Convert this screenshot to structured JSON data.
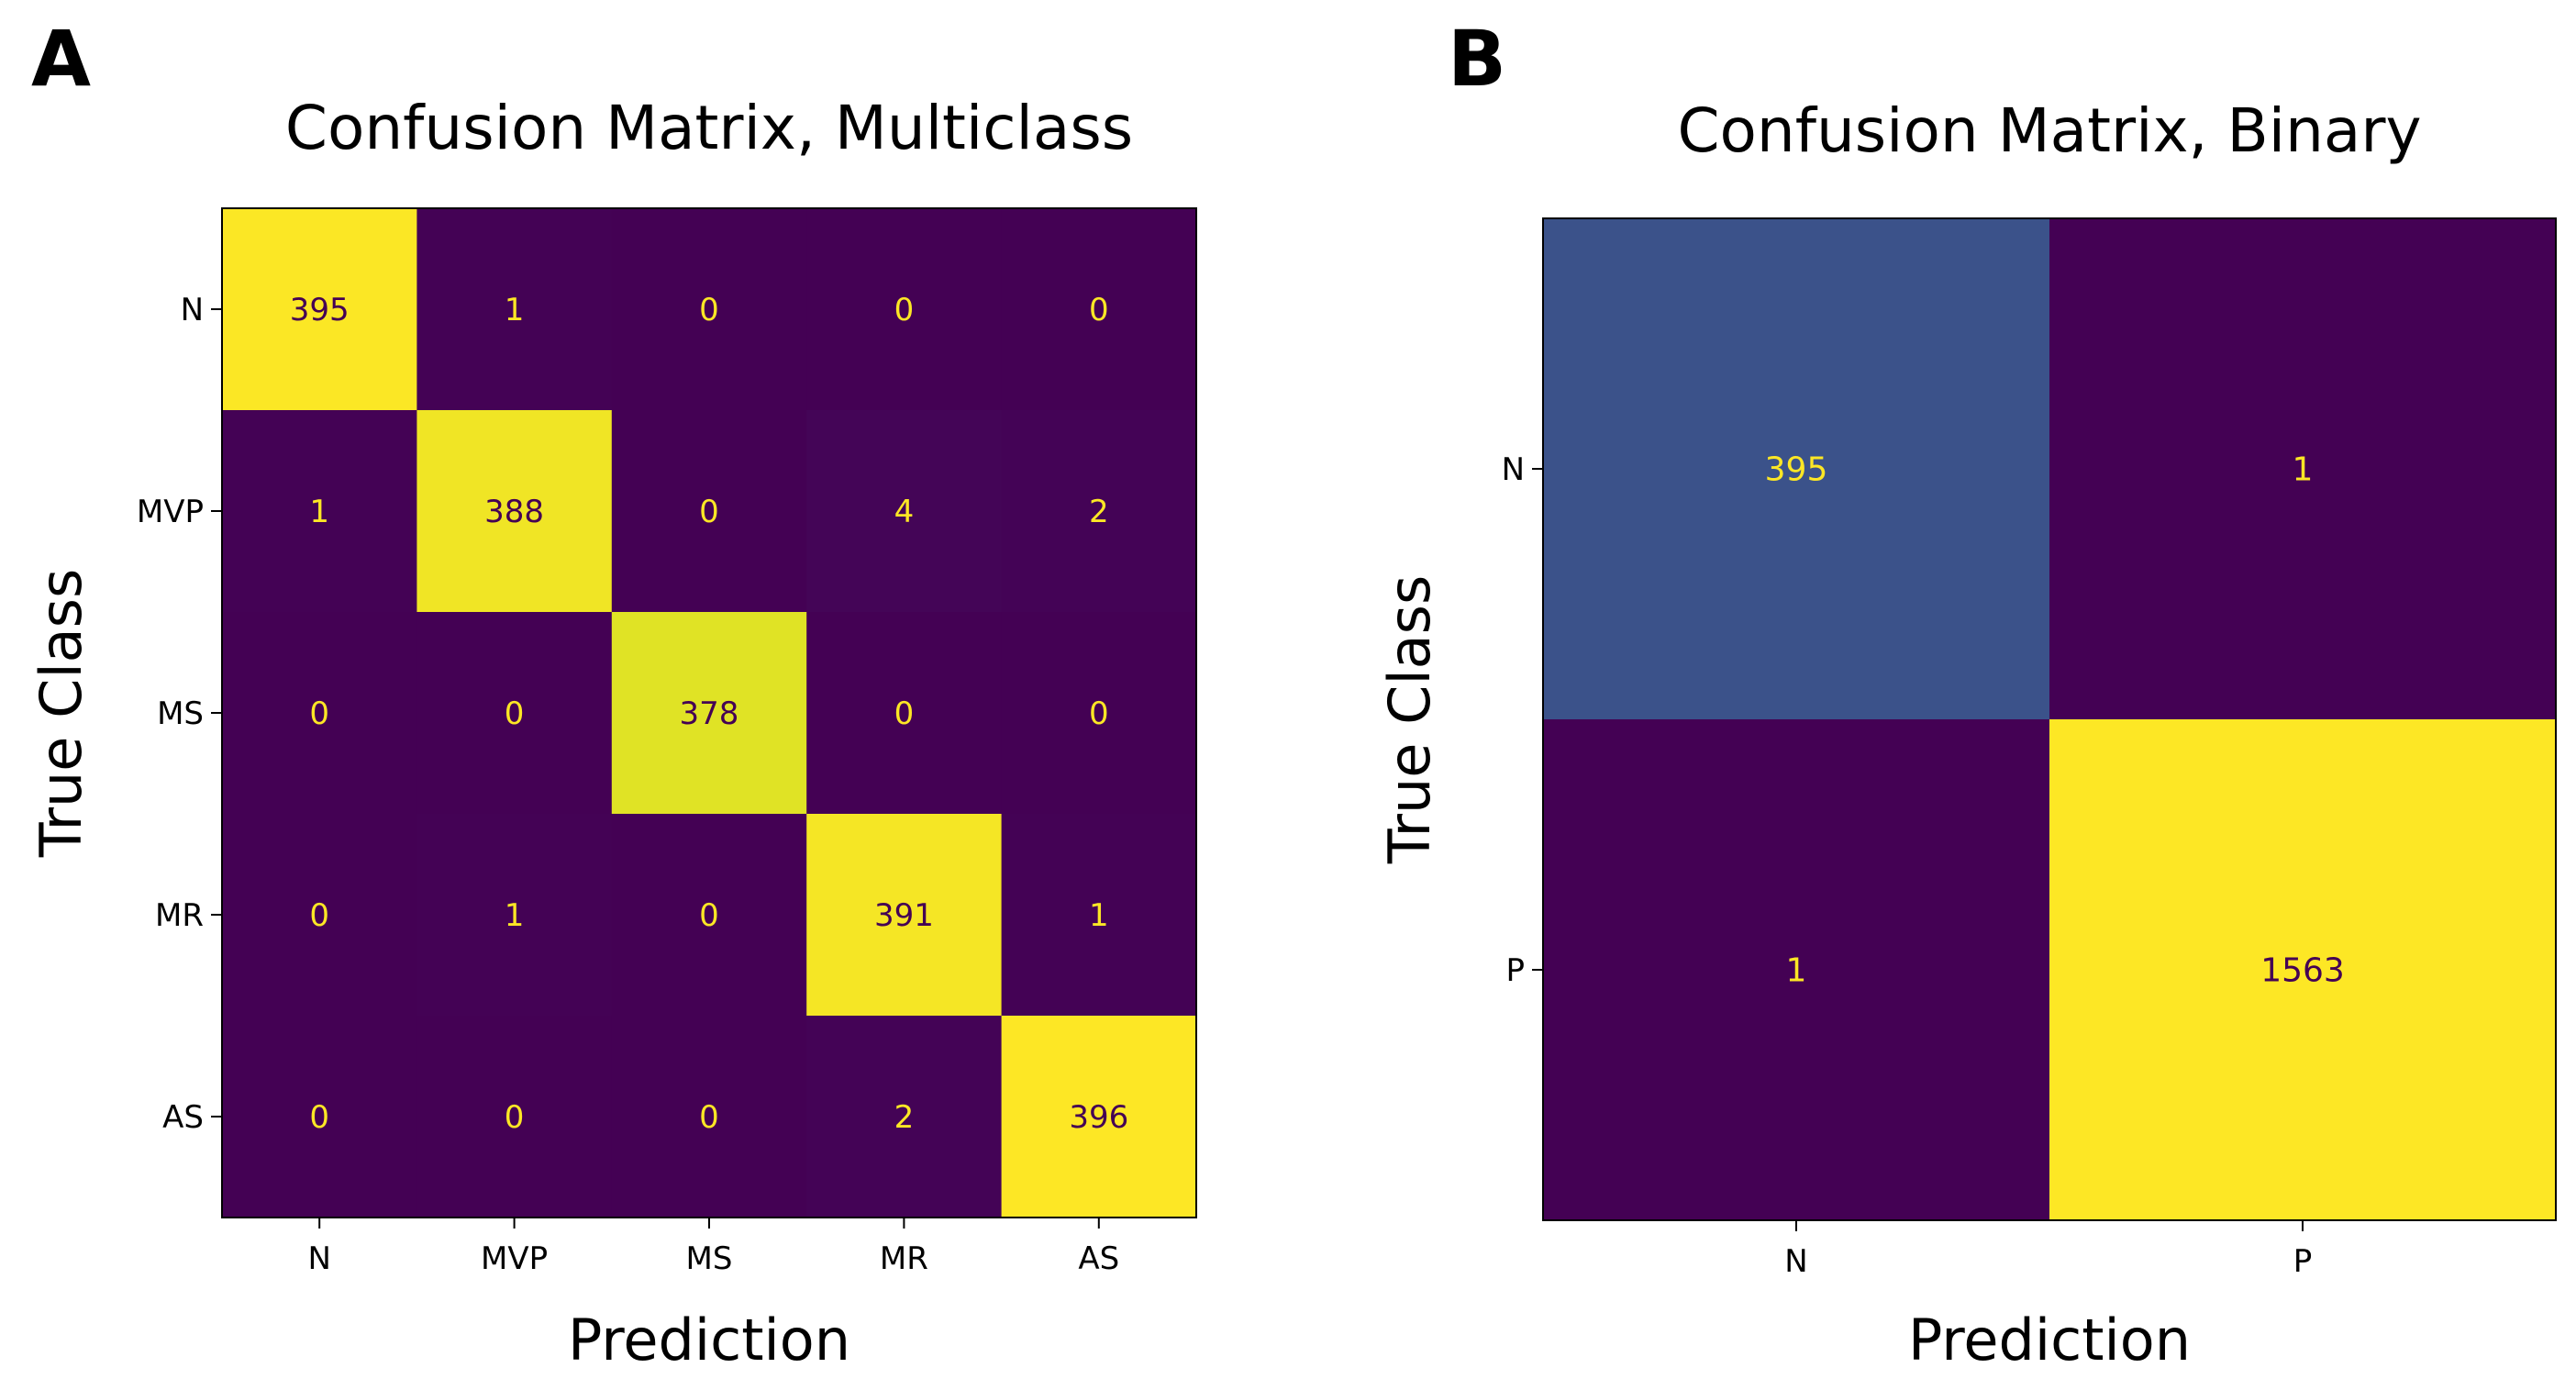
{
  "panels": [
    {
      "letter": "A"
    },
    {
      "letter": "B"
    }
  ],
  "colors": {
    "viridis": [
      "#440154",
      "#482475",
      "#414487",
      "#355f8d",
      "#2a788e",
      "#21918c",
      "#22a884",
      "#44bf70",
      "#7ad151",
      "#bddf26",
      "#fde725"
    ],
    "text_on_dark": "#fde725",
    "text_on_light": "#440154",
    "axis": "#000000"
  },
  "chart_data": [
    {
      "type": "heatmap",
      "title": "Confusion Matrix, Multiclass",
      "xlabel": "Prediction",
      "ylabel": "True Class",
      "x_categories": [
        "N",
        "MVP",
        "MS",
        "MR",
        "AS"
      ],
      "y_categories": [
        "N",
        "MVP",
        "MS",
        "MR",
        "AS"
      ],
      "values": [
        [
          395,
          1,
          0,
          0,
          0
        ],
        [
          1,
          388,
          0,
          4,
          2
        ],
        [
          0,
          0,
          378,
          0,
          0
        ],
        [
          0,
          1,
          0,
          391,
          1
        ],
        [
          0,
          0,
          0,
          2,
          396
        ]
      ],
      "vmin": 0,
      "vmax": 396
    },
    {
      "type": "heatmap",
      "title": "Confusion Matrix, Binary",
      "xlabel": "Prediction",
      "ylabel": "True Class",
      "x_categories": [
        "N",
        "P"
      ],
      "y_categories": [
        "N",
        "P"
      ],
      "values": [
        [
          395,
          1
        ],
        [
          1,
          1563
        ]
      ],
      "vmin": 1,
      "vmax": 1563
    }
  ]
}
